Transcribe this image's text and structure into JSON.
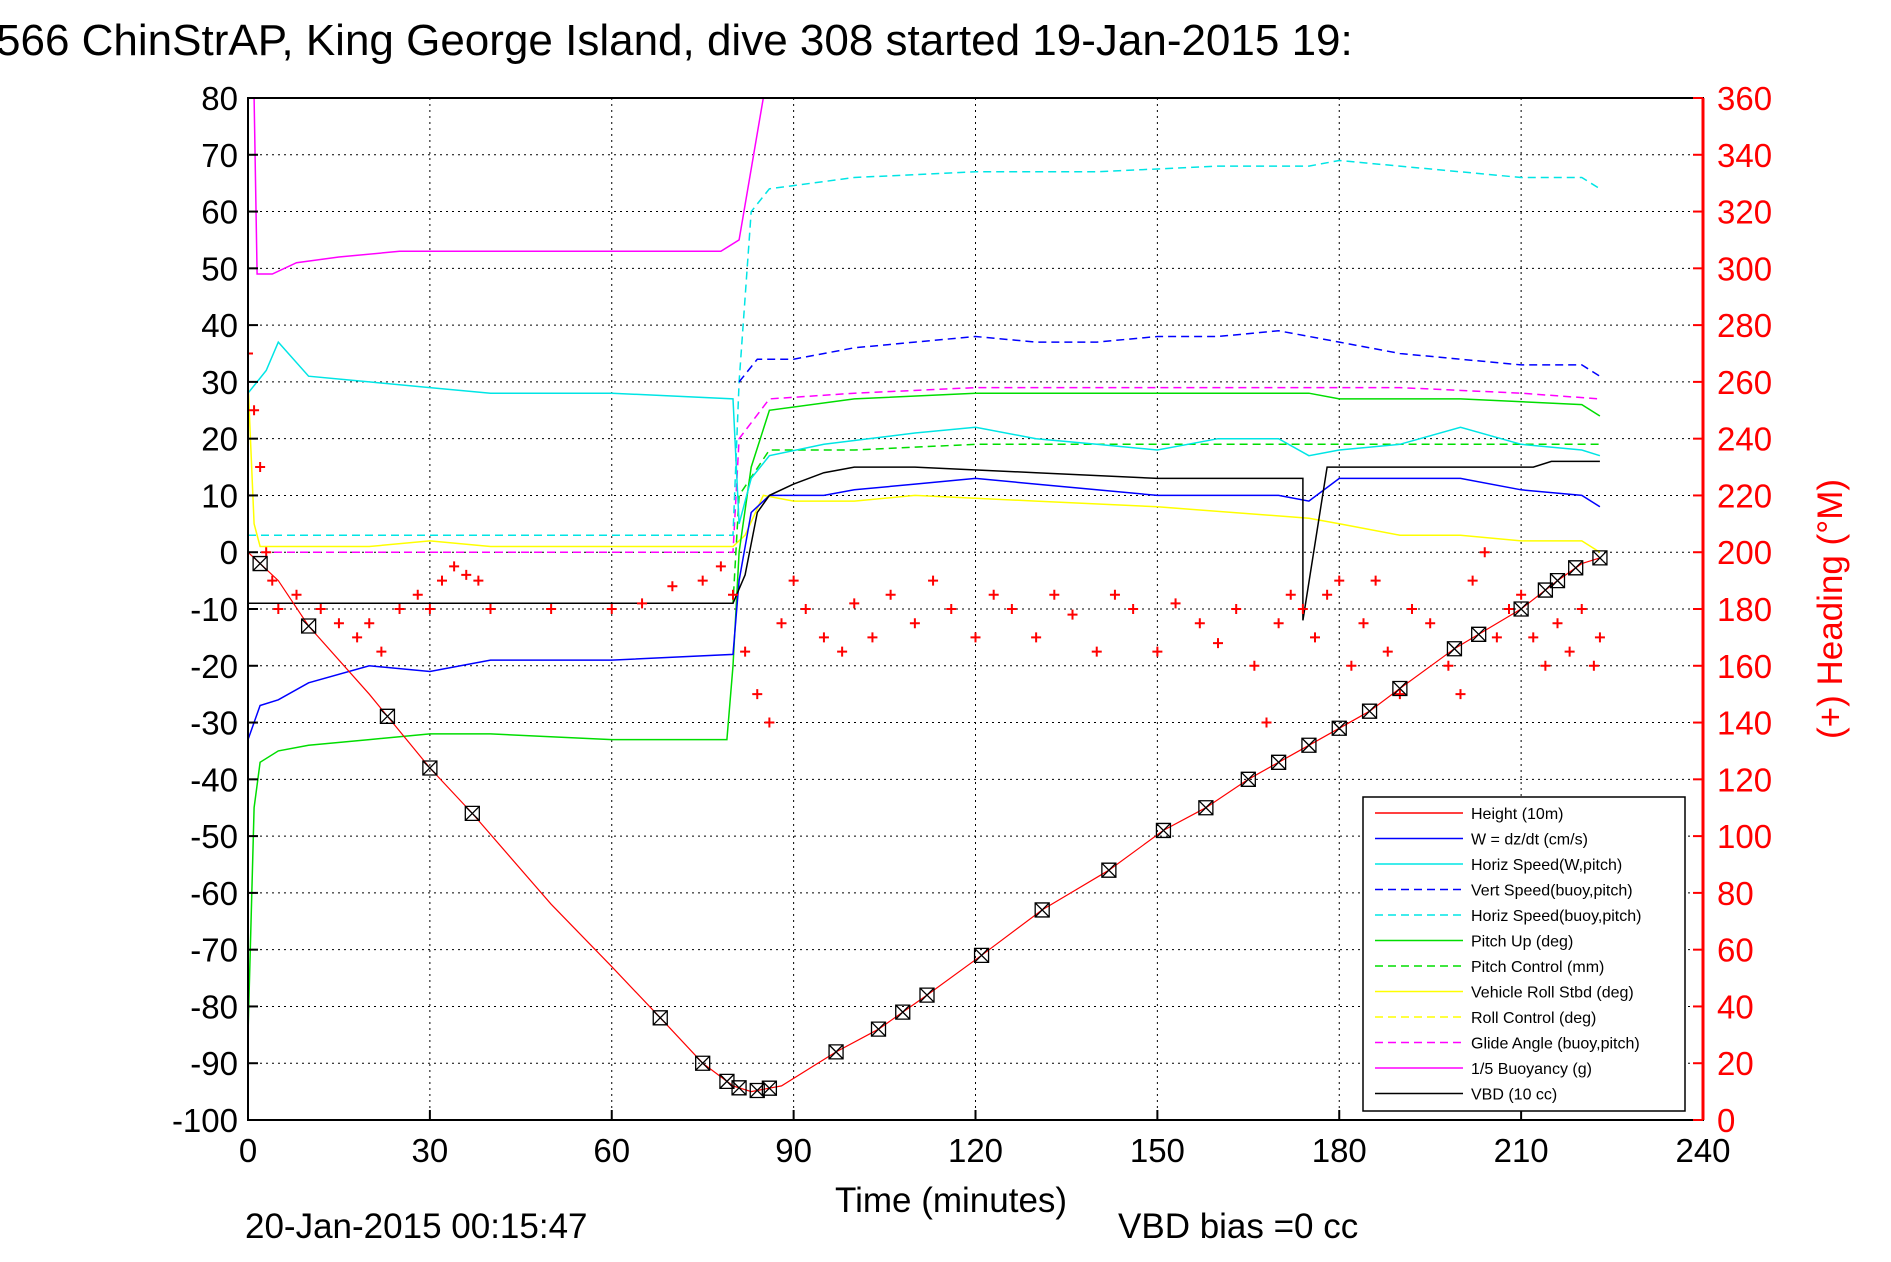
{
  "chart_data": {
    "type": "line",
    "title": "566 ChinStrAP, King George Island, dive 308 started 19-Jan-2015 19:",
    "xlabel": "Time (minutes)",
    "ylabel_right": "(+) Heading (°M)",
    "footer_left": "20-Jan-2015 00:15:47",
    "footer_right": "VBD bias =0 cc",
    "xlim": [
      0,
      240
    ],
    "ylim": [
      -100,
      80
    ],
    "ylim_right": [
      0,
      360
    ],
    "xticks": [
      "0",
      "30",
      "60",
      "90",
      "120",
      "150",
      "180",
      "210",
      "240"
    ],
    "yticks": [
      "-100",
      "-90",
      "-80",
      "-70",
      "-60",
      "-50",
      "-40",
      "-30",
      "-20",
      "-10",
      "0",
      "10",
      "20",
      "30",
      "40",
      "50",
      "60",
      "70",
      "80"
    ],
    "yticks_right": [
      "0",
      "20",
      "40",
      "60",
      "80",
      "100",
      "120",
      "140",
      "160",
      "180",
      "200",
      "220",
      "240",
      "260",
      "280",
      "300",
      "320",
      "340",
      "360"
    ],
    "grid": true,
    "legend_position": "bottom-right",
    "colors": {
      "height": "#ff0000",
      "w": "#0000ff",
      "horiz": "#00e5e5",
      "pitch": "#00dd00",
      "roll": "#ffff00",
      "glide": "#ff00ff",
      "buoy": "#ff00ff",
      "vbd": "#000000",
      "heading": "#ff0000"
    },
    "legend": [
      {
        "name": "Height (10m)",
        "color": "#ff0000",
        "dash": false
      },
      {
        "name": "W = dz/dt (cm/s)",
        "color": "#0000ff",
        "dash": false
      },
      {
        "name": "Horiz Speed(W,pitch)",
        "color": "#00e5e5",
        "dash": false
      },
      {
        "name": "Vert Speed(buoy,pitch)",
        "color": "#0000ff",
        "dash": true
      },
      {
        "name": "Horiz Speed(buoy,pitch)",
        "color": "#00e5e5",
        "dash": true
      },
      {
        "name": "Pitch Up (deg)",
        "color": "#00dd00",
        "dash": false
      },
      {
        "name": "Pitch Control (mm)",
        "color": "#00dd00",
        "dash": true
      },
      {
        "name": "Vehicle Roll Stbd (deg)",
        "color": "#ffff00",
        "dash": false
      },
      {
        "name": "Roll Control (deg)",
        "color": "#ffff00",
        "dash": true
      },
      {
        "name": "Glide Angle (buoy,pitch)",
        "color": "#ff00ff",
        "dash": true
      },
      {
        "name": "1/5 Buoyancy (g)",
        "color": "#ff00ff",
        "dash": false
      },
      {
        "name": "VBD (10 cc)",
        "color": "#000000",
        "dash": false
      }
    ],
    "series": {
      "height": [
        [
          0,
          0
        ],
        [
          5,
          -5
        ],
        [
          10,
          -13
        ],
        [
          20,
          -25
        ],
        [
          30,
          -38
        ],
        [
          37,
          -46
        ],
        [
          50,
          -62
        ],
        [
          60,
          -73
        ],
        [
          68,
          -82
        ],
        [
          75,
          -90
        ],
        [
          80,
          -94
        ],
        [
          83,
          -95
        ],
        [
          88,
          -94
        ],
        [
          97,
          -88
        ],
        [
          104,
          -84
        ],
        [
          108,
          -81
        ],
        [
          112,
          -78
        ],
        [
          121,
          -71
        ],
        [
          131,
          -63
        ],
        [
          142,
          -56
        ],
        [
          151,
          -49
        ],
        [
          158,
          -45
        ],
        [
          165,
          -40
        ],
        [
          170,
          -37
        ],
        [
          175,
          -34
        ],
        [
          185,
          -28
        ],
        [
          190,
          -24
        ],
        [
          199,
          -17
        ],
        [
          210,
          -10
        ],
        [
          216,
          -5
        ],
        [
          220,
          -2
        ],
        [
          223,
          -1
        ]
      ],
      "w": [
        [
          0,
          -33
        ],
        [
          2,
          -27
        ],
        [
          5,
          -26
        ],
        [
          10,
          -23
        ],
        [
          20,
          -20
        ],
        [
          30,
          -21
        ],
        [
          40,
          -19
        ],
        [
          60,
          -19
        ],
        [
          80,
          -18
        ],
        [
          81,
          -5
        ],
        [
          83,
          7
        ],
        [
          86,
          10
        ],
        [
          95,
          10
        ],
        [
          100,
          11
        ],
        [
          110,
          12
        ],
        [
          120,
          13
        ],
        [
          130,
          12
        ],
        [
          140,
          11
        ],
        [
          150,
          10
        ],
        [
          160,
          10
        ],
        [
          170,
          10
        ],
        [
          175,
          9
        ],
        [
          180,
          13
        ],
        [
          190,
          13
        ],
        [
          200,
          13
        ],
        [
          210,
          11
        ],
        [
          220,
          10
        ],
        [
          223,
          8
        ]
      ],
      "w_buoy": [
        [
          81,
          30
        ],
        [
          84,
          34
        ],
        [
          90,
          34
        ],
        [
          100,
          36
        ],
        [
          110,
          37
        ],
        [
          120,
          38
        ],
        [
          130,
          37
        ],
        [
          140,
          37
        ],
        [
          150,
          38
        ],
        [
          160,
          38
        ],
        [
          170,
          39
        ],
        [
          180,
          37
        ],
        [
          190,
          35
        ],
        [
          200,
          34
        ],
        [
          210,
          33
        ],
        [
          220,
          33
        ],
        [
          223,
          31
        ]
      ],
      "horiz": [
        [
          0,
          28
        ],
        [
          3,
          32
        ],
        [
          5,
          37
        ],
        [
          10,
          31
        ],
        [
          20,
          30
        ],
        [
          30,
          29
        ],
        [
          40,
          28
        ],
        [
          60,
          28
        ],
        [
          80,
          27
        ],
        [
          81,
          5
        ],
        [
          83,
          13
        ],
        [
          86,
          17
        ],
        [
          95,
          19
        ],
        [
          110,
          21
        ],
        [
          120,
          22
        ],
        [
          130,
          20
        ],
        [
          140,
          19
        ],
        [
          150,
          18
        ],
        [
          160,
          20
        ],
        [
          170,
          20
        ],
        [
          175,
          17
        ],
        [
          180,
          18
        ],
        [
          190,
          19
        ],
        [
          200,
          22
        ],
        [
          210,
          19
        ],
        [
          220,
          18
        ],
        [
          223,
          17
        ]
      ],
      "horiz_buoy": [
        [
          0,
          3
        ],
        [
          80,
          3
        ],
        [
          81,
          30
        ],
        [
          83,
          60
        ],
        [
          86,
          64
        ],
        [
          100,
          66
        ],
        [
          120,
          67
        ],
        [
          140,
          67
        ],
        [
          160,
          68
        ],
        [
          175,
          68
        ],
        [
          180,
          69
        ],
        [
          200,
          67
        ],
        [
          210,
          66
        ],
        [
          220,
          66
        ],
        [
          223,
          64
        ]
      ],
      "pitch": [
        [
          0,
          -85
        ],
        [
          1,
          -45
        ],
        [
          2,
          -37
        ],
        [
          5,
          -35
        ],
        [
          10,
          -34
        ],
        [
          20,
          -33
        ],
        [
          30,
          -32
        ],
        [
          40,
          -32
        ],
        [
          60,
          -33
        ],
        [
          79,
          -33
        ],
        [
          80,
          -20
        ],
        [
          81,
          0
        ],
        [
          83,
          15
        ],
        [
          86,
          25
        ],
        [
          100,
          27
        ],
        [
          120,
          28
        ],
        [
          140,
          28
        ],
        [
          160,
          28
        ],
        [
          175,
          28
        ],
        [
          180,
          27
        ],
        [
          200,
          27
        ],
        [
          220,
          26
        ],
        [
          223,
          24
        ]
      ],
      "pitch_ctrl": [
        [
          0,
          -9
        ],
        [
          80,
          -9
        ],
        [
          81,
          10
        ],
        [
          86,
          18
        ],
        [
          100,
          18
        ],
        [
          120,
          19
        ],
        [
          150,
          19
        ],
        [
          175,
          19
        ],
        [
          190,
          19
        ],
        [
          210,
          19
        ],
        [
          223,
          19
        ]
      ],
      "roll": [
        [
          0,
          30
        ],
        [
          1,
          5
        ],
        [
          2,
          1
        ],
        [
          10,
          1
        ],
        [
          20,
          1
        ],
        [
          30,
          2
        ],
        [
          40,
          1
        ],
        [
          60,
          1
        ],
        [
          80,
          1
        ],
        [
          82,
          3
        ],
        [
          85,
          10
        ],
        [
          90,
          9
        ],
        [
          100,
          9
        ],
        [
          110,
          10
        ],
        [
          130,
          9
        ],
        [
          150,
          8
        ],
        [
          175,
          6
        ],
        [
          180,
          5
        ],
        [
          190,
          3
        ],
        [
          200,
          3
        ],
        [
          210,
          2
        ],
        [
          220,
          2
        ],
        [
          223,
          0
        ]
      ],
      "glide": [
        [
          0,
          0
        ],
        [
          80,
          0
        ],
        [
          81,
          20
        ],
        [
          86,
          27
        ],
        [
          100,
          28
        ],
        [
          120,
          29
        ],
        [
          150,
          29
        ],
        [
          175,
          29
        ],
        [
          190,
          29
        ],
        [
          210,
          28
        ],
        [
          223,
          27
        ]
      ],
      "buoy": [
        [
          1,
          80
        ],
        [
          1.5,
          49
        ],
        [
          4,
          49
        ],
        [
          8,
          51
        ],
        [
          15,
          52
        ],
        [
          25,
          53
        ],
        [
          40,
          53
        ],
        [
          60,
          53
        ],
        [
          78,
          53
        ],
        [
          81,
          55
        ],
        [
          85,
          80
        ]
      ],
      "vbd": [
        [
          0,
          -9
        ],
        [
          3,
          -9
        ],
        [
          80,
          -9
        ],
        [
          82,
          -4
        ],
        [
          84,
          7
        ],
        [
          86,
          10
        ],
        [
          90,
          12
        ],
        [
          95,
          14
        ],
        [
          100,
          15
        ],
        [
          110,
          15
        ],
        [
          130,
          14
        ],
        [
          150,
          13
        ],
        [
          170,
          13
        ],
        [
          174,
          13
        ],
        [
          174,
          -12
        ],
        [
          178,
          15
        ],
        [
          200,
          15
        ],
        [
          212,
          15
        ],
        [
          215,
          16
        ],
        [
          223,
          16
        ]
      ],
      "heading": [
        [
          0,
          270
        ],
        [
          1,
          250
        ],
        [
          2,
          230
        ],
        [
          3,
          200
        ],
        [
          4,
          190
        ],
        [
          5,
          180
        ],
        [
          8,
          185
        ],
        [
          12,
          180
        ],
        [
          15,
          175
        ],
        [
          18,
          170
        ],
        [
          20,
          175
        ],
        [
          22,
          165
        ],
        [
          25,
          180
        ],
        [
          28,
          185
        ],
        [
          30,
          180
        ],
        [
          32,
          190
        ],
        [
          34,
          195
        ],
        [
          36,
          192
        ],
        [
          38,
          190
        ],
        [
          40,
          180
        ],
        [
          50,
          180
        ],
        [
          60,
          180
        ],
        [
          65,
          182
        ],
        [
          70,
          188
        ],
        [
          75,
          190
        ],
        [
          78,
          195
        ],
        [
          80,
          185
        ],
        [
          82,
          165
        ],
        [
          84,
          150
        ],
        [
          86,
          140
        ],
        [
          88,
          175
        ],
        [
          90,
          190
        ],
        [
          92,
          180
        ],
        [
          95,
          170
        ],
        [
          98,
          165
        ],
        [
          100,
          182
        ],
        [
          103,
          170
        ],
        [
          106,
          185
        ],
        [
          110,
          175
        ],
        [
          113,
          190
        ],
        [
          116,
          180
        ],
        [
          120,
          170
        ],
        [
          123,
          185
        ],
        [
          126,
          180
        ],
        [
          130,
          170
        ],
        [
          133,
          185
        ],
        [
          136,
          178
        ],
        [
          140,
          165
        ],
        [
          143,
          185
        ],
        [
          146,
          180
        ],
        [
          150,
          165
        ],
        [
          153,
          182
        ],
        [
          157,
          175
        ],
        [
          160,
          168
        ],
        [
          163,
          180
        ],
        [
          166,
          160
        ],
        [
          168,
          140
        ],
        [
          170,
          175
        ],
        [
          172,
          185
        ],
        [
          174,
          180
        ],
        [
          176,
          170
        ],
        [
          178,
          185
        ],
        [
          180,
          190
        ],
        [
          182,
          160
        ],
        [
          184,
          175
        ],
        [
          186,
          190
        ],
        [
          188,
          165
        ],
        [
          190,
          150
        ],
        [
          192,
          180
        ],
        [
          195,
          175
        ],
        [
          198,
          160
        ],
        [
          200,
          150
        ],
        [
          202,
          190
        ],
        [
          204,
          200
        ],
        [
          206,
          170
        ],
        [
          208,
          180
        ],
        [
          210,
          185
        ],
        [
          212,
          170
        ],
        [
          214,
          160
        ],
        [
          216,
          175
        ],
        [
          218,
          165
        ],
        [
          220,
          180
        ],
        [
          222,
          160
        ],
        [
          223,
          170
        ]
      ]
    },
    "markers_x": [
      2,
      10,
      23,
      30,
      37,
      68,
      75,
      79,
      81,
      84,
      86,
      97,
      104,
      108,
      112,
      121,
      131,
      142,
      151,
      158,
      165,
      170,
      175,
      180,
      185,
      190,
      199,
      203,
      210,
      214,
      216,
      219,
      223
    ]
  }
}
